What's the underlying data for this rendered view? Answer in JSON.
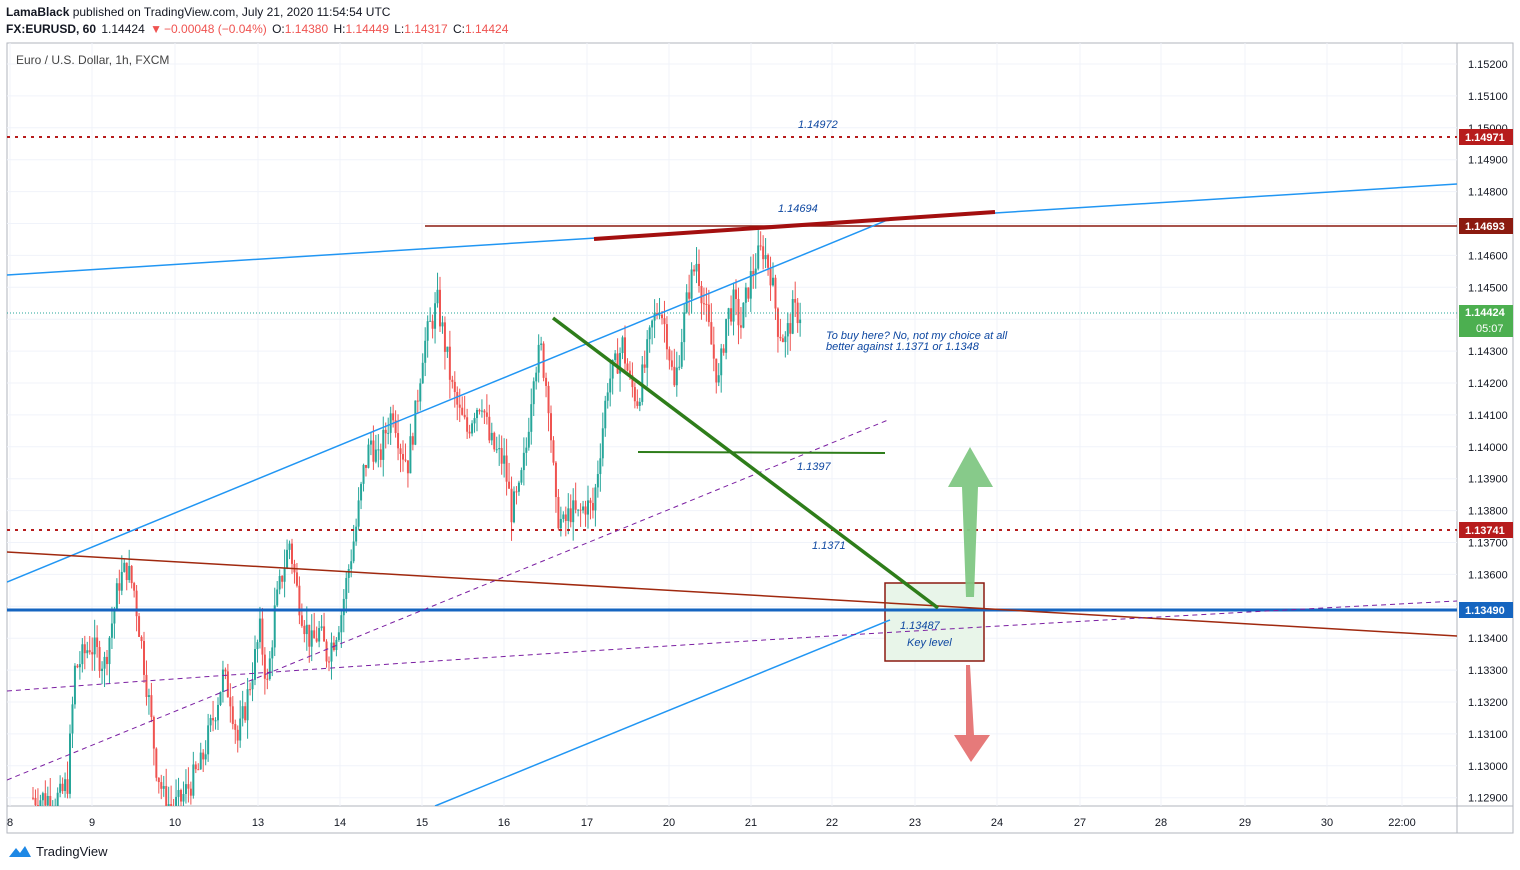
{
  "header": {
    "line1": "LamaBlack published on TradingView.com, July 21, 2020 11:54:54 UTC",
    "symbol": "FX:EURUSD, 60",
    "last": "1.14424",
    "change": "−0.00048 (−0.04%)",
    "o_label": "O:",
    "o_value": "1.14380",
    "h_label": "H:",
    "h_value": "1.14449",
    "l_label": "L:",
    "l_value": "1.14317",
    "c_label": "C:",
    "c_value": "1.14424"
  },
  "legend": {
    "title": "Euro / U.S. Dollar, 1h, FXCM"
  },
  "footer": {
    "brand": "TradingView"
  },
  "colors": {
    "up": "#26a69a",
    "down": "#ef5350",
    "blue": "#2196f3",
    "darkred": "#8b1a10",
    "green": "#2e7d1a"
  },
  "chart_data": {
    "type": "candlestick",
    "title": "Euro / U.S. Dollar, 1h, FXCM",
    "ylim": [
      1.1285,
      1.1528
    ],
    "y_ticks": [
      "1.15200",
      "1.15100",
      "1.15000",
      "1.14900",
      "1.14800",
      "1.14700",
      "1.14600",
      "1.14500",
      "1.14400",
      "1.14300",
      "1.14200",
      "1.14100",
      "1.14000",
      "1.13900",
      "1.13800",
      "1.13700",
      "1.13600",
      "1.13500",
      "1.13400",
      "1.13300",
      "1.13200",
      "1.13100",
      "1.13000",
      "1.12900"
    ],
    "x_ticks": [
      "8",
      "9",
      "10",
      "13",
      "14",
      "15",
      "16",
      "17",
      "20",
      "21",
      "22",
      "23",
      "24",
      "27",
      "28",
      "29",
      "30",
      "22:00"
    ],
    "price_path": [
      [
        0,
        1.129
      ],
      [
        4,
        1.129
      ],
      [
        5,
        1.1295
      ],
      [
        6,
        1.133
      ],
      [
        8,
        1.1338
      ],
      [
        10,
        1.1332
      ],
      [
        11,
        1.1345
      ],
      [
        12,
        1.1358
      ],
      [
        13,
        1.1362
      ],
      [
        14,
        1.1355
      ],
      [
        15,
        1.1338
      ],
      [
        16,
        1.132
      ],
      [
        17,
        1.13
      ],
      [
        18,
        1.129
      ],
      [
        19,
        1.1287
      ],
      [
        20,
        1.1288
      ],
      [
        21,
        1.1292
      ],
      [
        23,
        1.13
      ],
      [
        25,
        1.1318
      ],
      [
        26,
        1.1328
      ],
      [
        27,
        1.1322
      ],
      [
        28,
        1.1308
      ],
      [
        29,
        1.1318
      ],
      [
        30,
        1.133
      ],
      [
        31,
        1.1342
      ],
      [
        32,
        1.1325
      ],
      [
        33,
        1.1348
      ],
      [
        34,
        1.136
      ],
      [
        35,
        1.137
      ],
      [
        36,
        1.1355
      ],
      [
        37,
        1.1345
      ],
      [
        38,
        1.1338
      ],
      [
        39,
        1.1342
      ],
      [
        40,
        1.1335
      ],
      [
        41,
        1.134
      ],
      [
        42,
        1.1348
      ],
      [
        43,
        1.1362
      ],
      [
        44,
        1.1375
      ],
      [
        45,
        1.1392
      ],
      [
        46,
        1.1402
      ],
      [
        47,
        1.1395
      ],
      [
        48,
        1.1405
      ],
      [
        49,
        1.1412
      ],
      [
        50,
        1.14
      ],
      [
        51,
        1.1395
      ],
      [
        52,
        1.141
      ],
      [
        53,
        1.143
      ],
      [
        54,
        1.1438
      ],
      [
        55,
        1.1445
      ],
      [
        56,
        1.1432
      ],
      [
        57,
        1.1418
      ],
      [
        58,
        1.141
      ],
      [
        59,
        1.1405
      ],
      [
        60,
        1.1412
      ],
      [
        61,
        1.1415
      ],
      [
        62,
        1.1402
      ],
      [
        63,
        1.1398
      ],
      [
        64,
        1.1395
      ],
      [
        65,
        1.138
      ],
      [
        66,
        1.1385
      ],
      [
        67,
        1.14
      ],
      [
        68,
        1.1425
      ],
      [
        69,
        1.143
      ],
      [
        70,
        1.1415
      ],
      [
        71,
        1.138
      ],
      [
        72,
        1.1375
      ],
      [
        73,
        1.138
      ],
      [
        74,
        1.1378
      ],
      [
        75,
        1.1382
      ],
      [
        76,
        1.138
      ],
      [
        77,
        1.14
      ],
      [
        78,
        1.142
      ],
      [
        79,
        1.1425
      ],
      [
        80,
        1.1432
      ],
      [
        81,
        1.142
      ],
      [
        82,
        1.1415
      ],
      [
        83,
        1.1425
      ],
      [
        84,
        1.1438
      ],
      [
        85,
        1.1445
      ],
      [
        86,
        1.1435
      ],
      [
        87,
        1.1418
      ],
      [
        88,
        1.1435
      ],
      [
        89,
        1.145
      ],
      [
        90,
        1.1458
      ],
      [
        91,
        1.1445
      ],
      [
        92,
        1.1432
      ],
      [
        93,
        1.142
      ],
      [
        94,
        1.144
      ],
      [
        95,
        1.1445
      ],
      [
        96,
        1.1438
      ],
      [
        97,
        1.145
      ],
      [
        98,
        1.1458
      ],
      [
        99,
        1.1462
      ],
      [
        100,
        1.1455
      ],
      [
        101,
        1.1438
      ],
      [
        102,
        1.1433
      ],
      [
        103,
        1.1442
      ],
      [
        104,
        1.1442
      ]
    ],
    "levels": [
      {
        "label": "1.14971",
        "value": 1.14971,
        "style": "dotted",
        "color": "#b71c1c"
      },
      {
        "label": "1.14693",
        "value": 1.14693,
        "style": "solid",
        "color": "#8b1a10"
      },
      {
        "label": "1.13741",
        "value": 1.13741,
        "style": "dotted",
        "color": "#b71c1c"
      },
      {
        "label": "1.13490",
        "value": 1.1349,
        "style": "solid-thick",
        "color": "#1565c0"
      }
    ],
    "current_price": {
      "label": "1.14424",
      "value": 1.14424,
      "countdown": "05:07"
    },
    "annotations": [
      {
        "text": "1.14972"
      },
      {
        "text": "1.14694"
      },
      {
        "text": "1.1397"
      },
      {
        "text": "1.1371"
      },
      {
        "text": "1.13487"
      },
      {
        "text": "Key level"
      },
      {
        "text": "To buy here? No, not my choice at all"
      },
      {
        "text": "better against 1.1371 or 1.1348"
      }
    ]
  }
}
